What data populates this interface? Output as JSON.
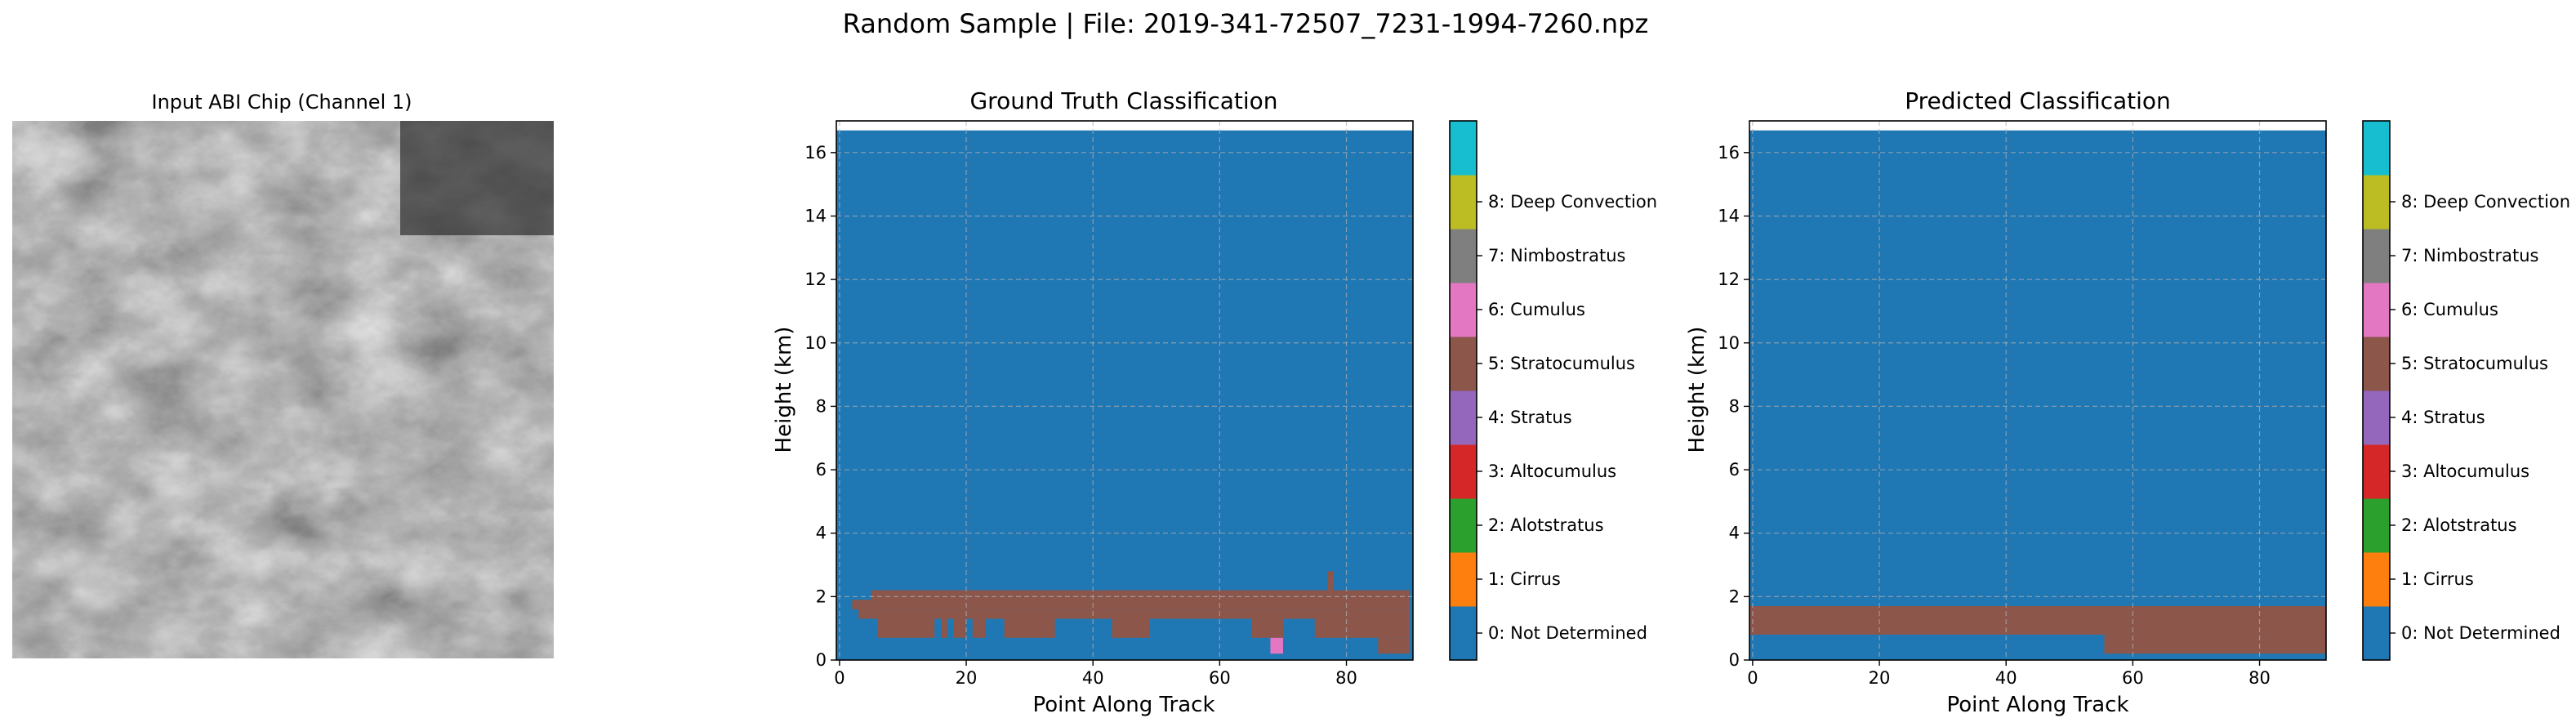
{
  "figure": {
    "suptitle": "Random Sample | File: 2019-341-72507_7231-1994-7260.npz"
  },
  "input_panel": {
    "title": "Input ABI Chip (Channel 1)"
  },
  "class_colors": [
    "#1f77b4",
    "#ff7f0e",
    "#2ca02c",
    "#d62728",
    "#9467bd",
    "#8c564b",
    "#e377c2",
    "#7f7f7f",
    "#bcbd22",
    "#17becf"
  ],
  "class_labels": [
    "0: Not Determined",
    "1: Cirrus",
    "2: Alotstratus",
    "3: Altocumulus",
    "4: Stratus",
    "5: Stratocumulus",
    "6: Cumulus",
    "7: Nimbostratus",
    "8: Deep Convection"
  ],
  "chart_data": [
    {
      "type": "heatmap",
      "title": "Ground Truth Classification",
      "xlabel": "Point Along Track",
      "ylabel": "Height (km)",
      "xlim": [
        -0.5,
        90.5
      ],
      "ylim": [
        0,
        17
      ],
      "xticks": [
        "0",
        "20",
        "40",
        "60",
        "80"
      ],
      "yticks": [
        "0",
        "2",
        "4",
        "6",
        "8",
        "10",
        "12",
        "14",
        "16"
      ],
      "grid": true,
      "background_class": 0,
      "data_top_km": 16.7,
      "regions": [
        {
          "class": 5,
          "x": [
            2,
            3
          ],
          "y": [
            1.6,
            1.9
          ]
        },
        {
          "class": 5,
          "x": [
            3,
            5
          ],
          "y": [
            1.3,
            1.9
          ]
        },
        {
          "class": 5,
          "x": [
            5,
            90
          ],
          "y": [
            2.0,
            2.2
          ]
        },
        {
          "class": 5,
          "x": [
            5,
            90
          ],
          "y": [
            1.6,
            2.0
          ]
        },
        {
          "class": 5,
          "x": [
            5,
            90
          ],
          "y": [
            1.3,
            1.6
          ]
        },
        {
          "class": 5,
          "x": [
            6,
            15
          ],
          "y": [
            0.7,
            1.3
          ]
        },
        {
          "class": 5,
          "x": [
            16,
            17
          ],
          "y": [
            0.7,
            1.3
          ]
        },
        {
          "class": 5,
          "x": [
            18,
            20
          ],
          "y": [
            0.7,
            1.3
          ]
        },
        {
          "class": 5,
          "x": [
            21,
            23
          ],
          "y": [
            0.7,
            1.3
          ]
        },
        {
          "class": 5,
          "x": [
            26,
            34
          ],
          "y": [
            0.7,
            1.3
          ]
        },
        {
          "class": 5,
          "x": [
            43,
            49
          ],
          "y": [
            0.7,
            1.3
          ]
        },
        {
          "class": 5,
          "x": [
            65,
            70
          ],
          "y": [
            0.7,
            1.3
          ]
        },
        {
          "class": 5,
          "x": [
            75,
            90
          ],
          "y": [
            0.7,
            1.3
          ]
        },
        {
          "class": 5,
          "x": [
            85,
            90
          ],
          "y": [
            0.2,
            0.7
          ]
        },
        {
          "class": 5,
          "x": [
            77,
            78
          ],
          "y": [
            2.2,
            2.8
          ]
        },
        {
          "class": 6,
          "x": [
            68,
            70
          ],
          "y": [
            0.2,
            0.7
          ]
        }
      ]
    },
    {
      "type": "heatmap",
      "title": "Predicted Classification",
      "xlabel": "Point Along Track",
      "ylabel": "Height (km)",
      "xlim": [
        -0.5,
        90.5
      ],
      "ylim": [
        0,
        17
      ],
      "xticks": [
        "0",
        "20",
        "40",
        "60",
        "80"
      ],
      "yticks": [
        "0",
        "2",
        "4",
        "6",
        "8",
        "10",
        "12",
        "14",
        "16"
      ],
      "grid": true,
      "background_class": 0,
      "data_top_km": 16.7,
      "regions": [
        {
          "class": 5,
          "x": [
            -0.5,
            90.5
          ],
          "y": [
            0.8,
            1.7
          ]
        },
        {
          "class": 5,
          "x": [
            55.5,
            90.5
          ],
          "y": [
            0.2,
            0.8
          ]
        }
      ]
    }
  ]
}
